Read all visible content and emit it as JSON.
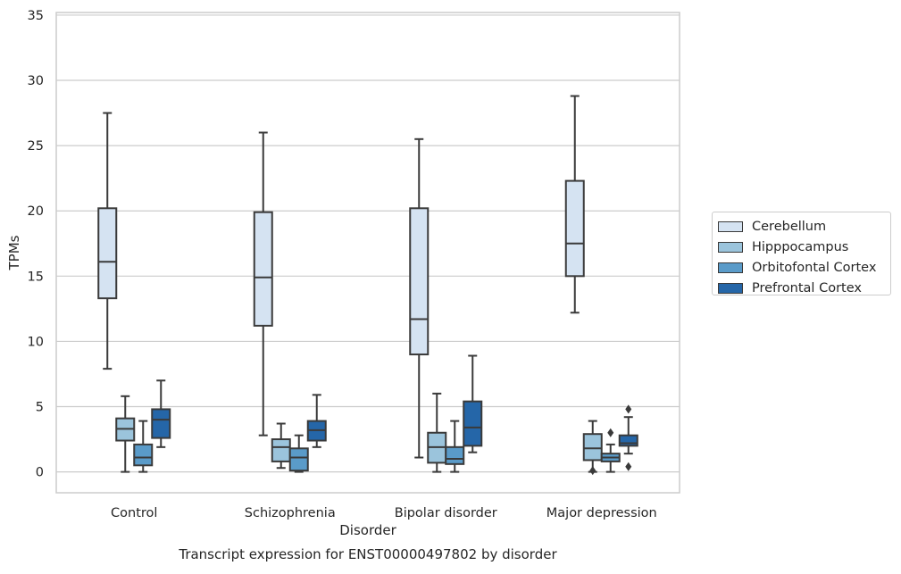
{
  "chart_data": {
    "type": "box",
    "title": "Transcript expression for ENST00000497802 by disorder",
    "xlabel": "Disorder",
    "ylabel": "TPMs",
    "ylim": [
      -1.6,
      35.2
    ],
    "yticks": [
      0,
      5,
      10,
      15,
      20,
      25,
      30,
      35
    ],
    "grid": "horizontal",
    "legend_position": "right",
    "categories": [
      "Control",
      "Schizophrenia",
      "Bipolar disorder",
      "Major depression"
    ],
    "series": [
      {
        "name": "Cerebellum",
        "color": "#d5e3f2",
        "boxes": [
          {
            "whisker_low": 7.9,
            "q1": 13.3,
            "median": 16.1,
            "q3": 20.2,
            "whisker_high": 27.5,
            "outliers": []
          },
          {
            "whisker_low": 2.8,
            "q1": 11.2,
            "median": 14.9,
            "q3": 19.9,
            "whisker_high": 26.0,
            "outliers": []
          },
          {
            "whisker_low": 1.1,
            "q1": 9.0,
            "median": 11.7,
            "q3": 20.2,
            "whisker_high": 25.5,
            "outliers": []
          },
          {
            "whisker_low": 12.2,
            "q1": 15.0,
            "median": 17.5,
            "q3": 22.3,
            "whisker_high": 28.8,
            "outliers": []
          }
        ]
      },
      {
        "name": "Hipppocampus",
        "color": "#9bc4dc",
        "boxes": [
          {
            "whisker_low": 0.0,
            "q1": 2.4,
            "median": 3.3,
            "q3": 4.1,
            "whisker_high": 5.8,
            "outliers": []
          },
          {
            "whisker_low": 0.3,
            "q1": 0.8,
            "median": 1.9,
            "q3": 2.5,
            "whisker_high": 3.7,
            "outliers": []
          },
          {
            "whisker_low": 0.0,
            "q1": 0.7,
            "median": 1.9,
            "q3": 3.0,
            "whisker_high": 6.0,
            "outliers": []
          },
          {
            "whisker_low": 0.0,
            "q1": 0.9,
            "median": 1.8,
            "q3": 2.9,
            "whisker_high": 3.9,
            "outliers": [
              0.1
            ]
          }
        ]
      },
      {
        "name": "Orbitofontal Cortex",
        "color": "#5a9bc9",
        "boxes": [
          {
            "whisker_low": 0.0,
            "q1": 0.5,
            "median": 1.1,
            "q3": 2.1,
            "whisker_high": 3.9,
            "outliers": []
          },
          {
            "whisker_low": 0.0,
            "q1": 0.1,
            "median": 1.1,
            "q3": 1.8,
            "whisker_high": 2.8,
            "outliers": []
          },
          {
            "whisker_low": 0.0,
            "q1": 0.6,
            "median": 1.0,
            "q3": 1.9,
            "whisker_high": 3.9,
            "outliers": []
          },
          {
            "whisker_low": 0.0,
            "q1": 0.8,
            "median": 1.1,
            "q3": 1.4,
            "whisker_high": 2.1,
            "outliers": [
              3.0
            ]
          }
        ]
      },
      {
        "name": "Prefrontal Cortex",
        "color": "#2566a8",
        "boxes": [
          {
            "whisker_low": 1.9,
            "q1": 2.6,
            "median": 4.0,
            "q3": 4.8,
            "whisker_high": 7.0,
            "outliers": []
          },
          {
            "whisker_low": 1.9,
            "q1": 2.4,
            "median": 3.2,
            "q3": 3.9,
            "whisker_high": 5.9,
            "outliers": []
          },
          {
            "whisker_low": 1.5,
            "q1": 2.0,
            "median": 3.4,
            "q3": 5.4,
            "whisker_high": 8.9,
            "outliers": []
          },
          {
            "whisker_low": 1.4,
            "q1": 2.0,
            "median": 2.2,
            "q3": 2.8,
            "whisker_high": 4.2,
            "outliers": [
              4.8,
              0.4
            ]
          }
        ]
      }
    ]
  }
}
